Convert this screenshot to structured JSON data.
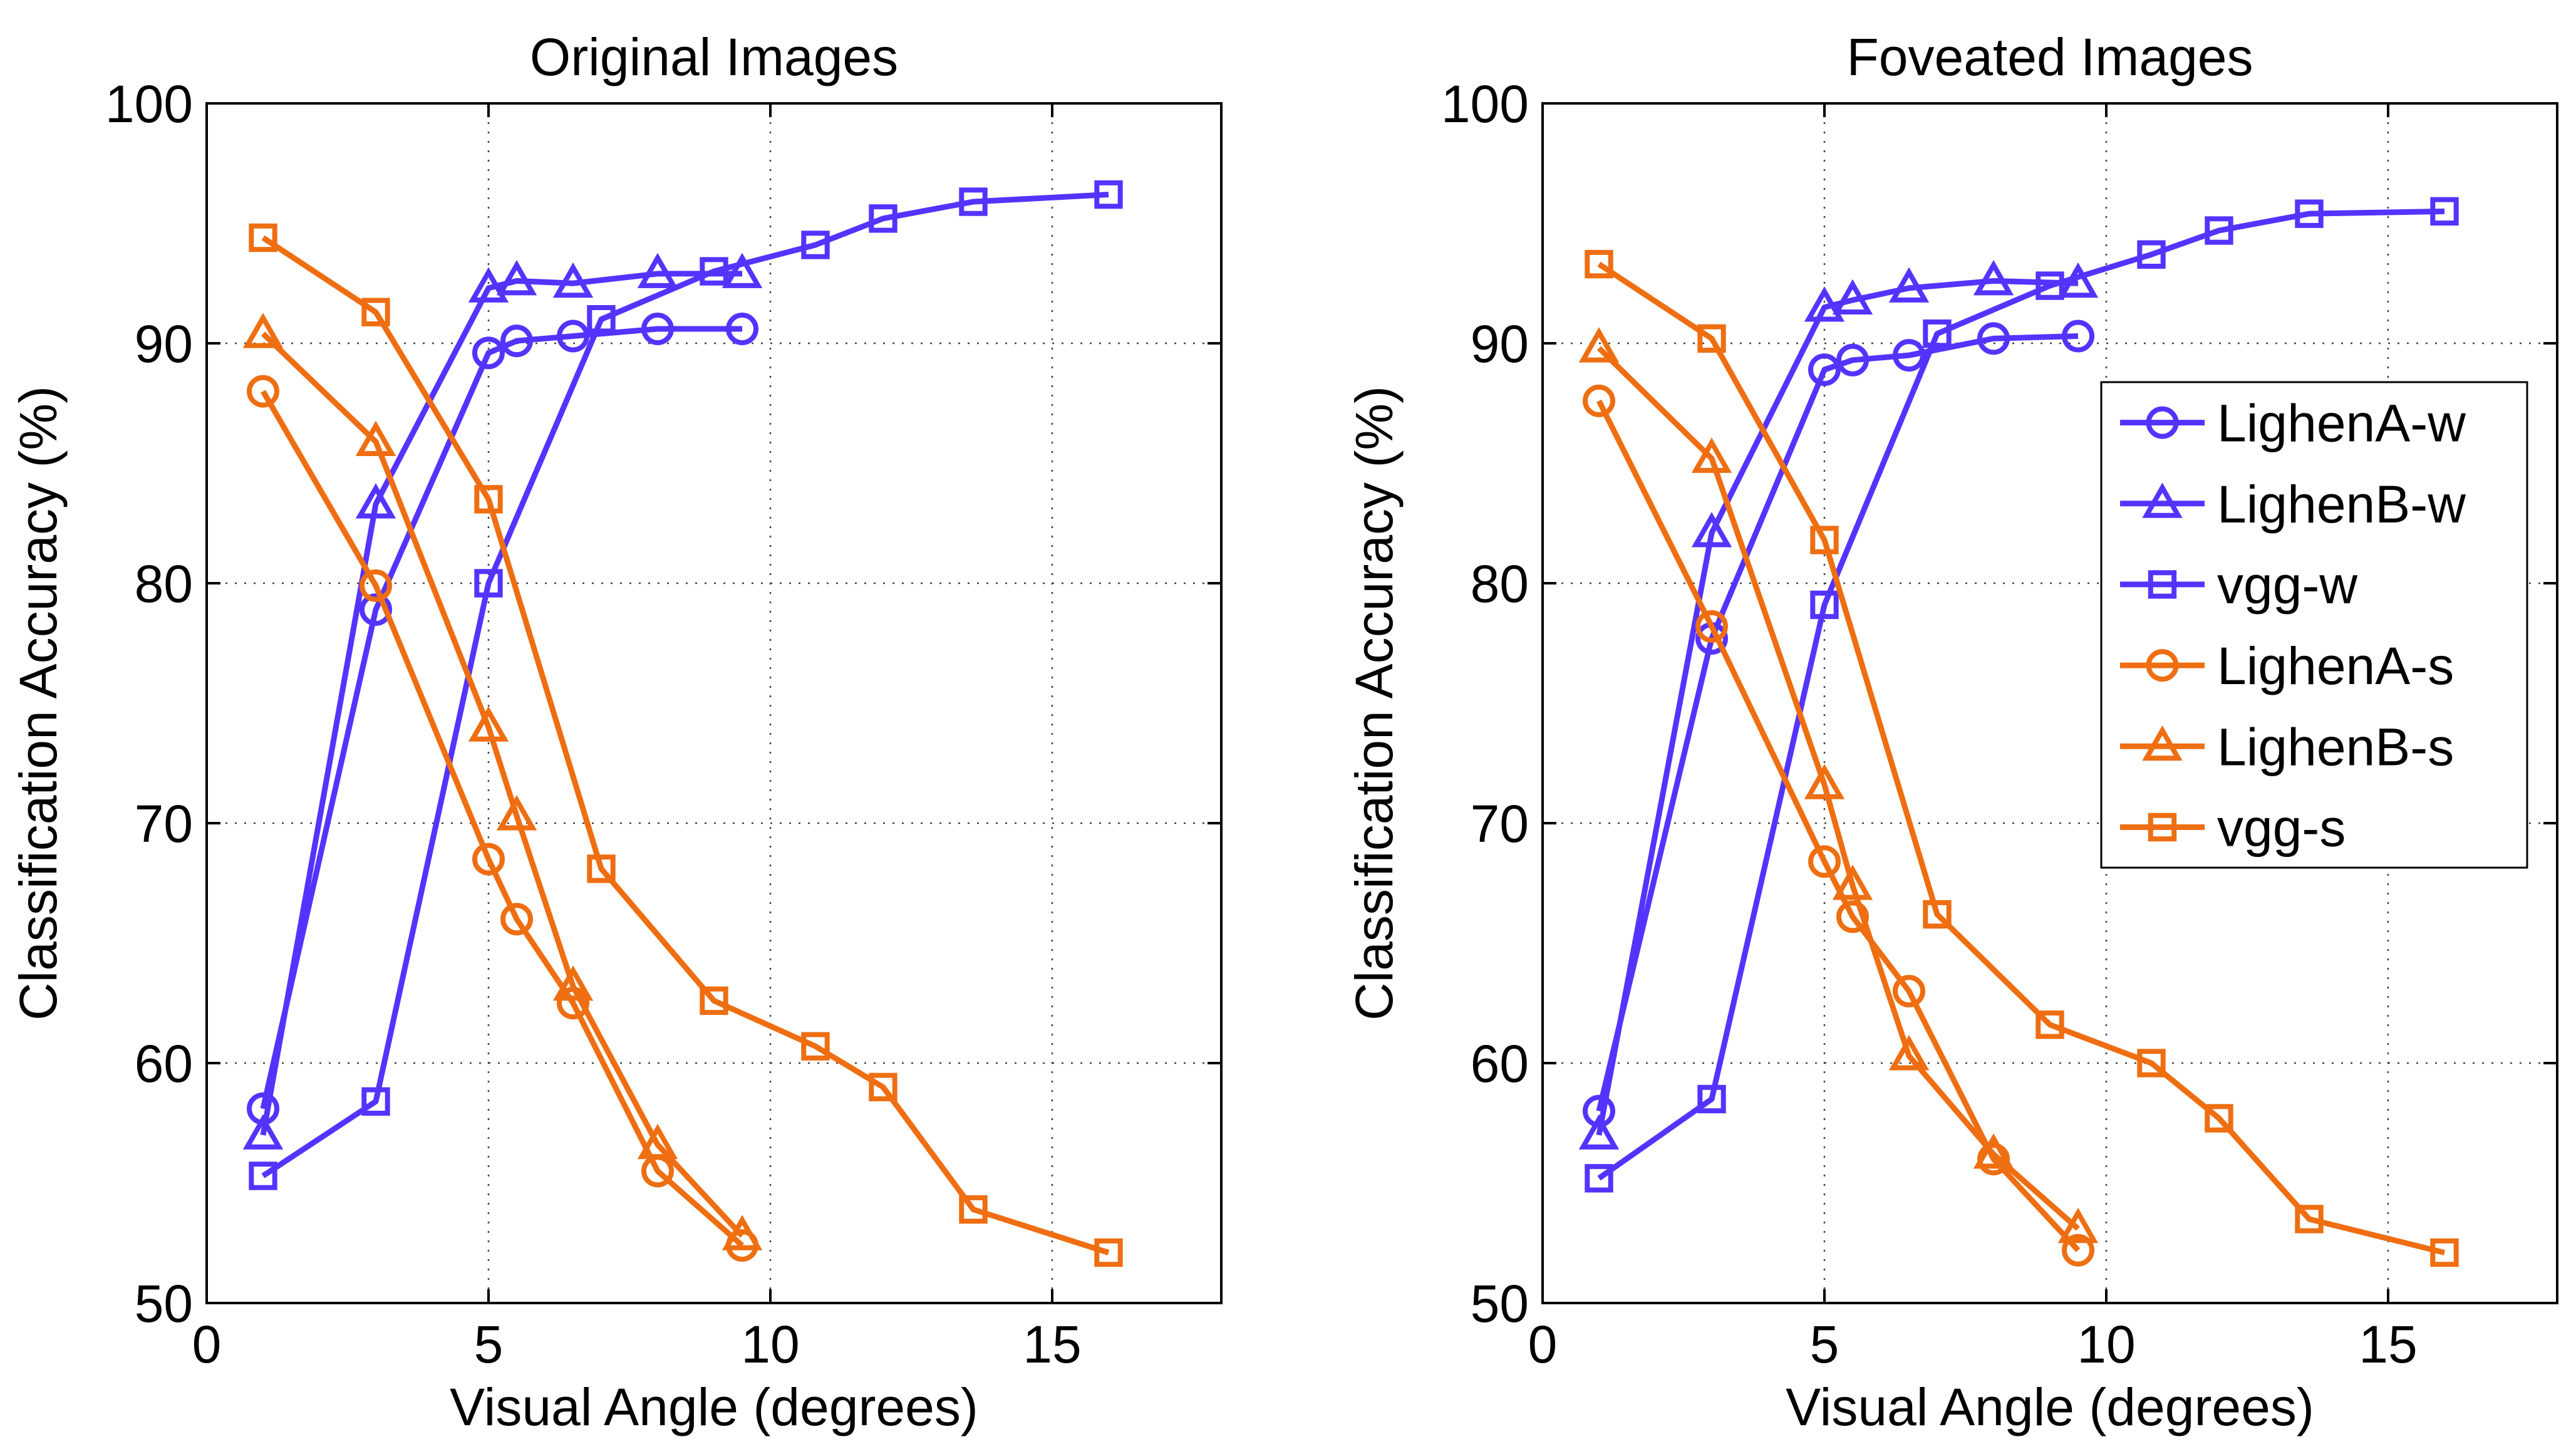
{
  "chart_data": [
    {
      "type": "line",
      "title": "Original Images",
      "xlabel": "Visual Angle (degrees)",
      "ylabel": "Classification Accuracy (%)",
      "xlim": [
        0,
        18
      ],
      "ylim": [
        50,
        100
      ],
      "xticks": [
        0,
        5,
        10,
        15
      ],
      "yticks": [
        50,
        60,
        70,
        80,
        90,
        100
      ],
      "grid": true,
      "legend": false,
      "series": [
        {
          "name": "LighenA-w",
          "color": "#5533ff",
          "marker": "circle",
          "x": [
            1,
            3,
            5,
            5.5,
            6.5,
            8,
            9.5
          ],
          "y": [
            58.1,
            78.9,
            89.6,
            90.1,
            90.3,
            90.6,
            90.6
          ]
        },
        {
          "name": "LighenB-w",
          "color": "#5533ff",
          "marker": "triangle",
          "x": [
            1,
            3,
            5,
            5.5,
            6.5,
            8,
            9.5
          ],
          "y": [
            57.0,
            83.3,
            92.3,
            92.6,
            92.5,
            92.9,
            92.9
          ]
        },
        {
          "name": "vgg-w",
          "color": "#5533ff",
          "marker": "square",
          "x": [
            1,
            3,
            5,
            7,
            9,
            10.8,
            12,
            13.6,
            16
          ],
          "y": [
            55.3,
            58.4,
            80.0,
            91.0,
            93.0,
            94.1,
            95.2,
            95.9,
            96.2
          ]
        },
        {
          "name": "LighenA-s",
          "color": "#ee6e11",
          "marker": "circle",
          "x": [
            1,
            3,
            5,
            5.5,
            6.5,
            8,
            9.5
          ],
          "y": [
            88.0,
            79.9,
            68.5,
            66.0,
            62.5,
            55.5,
            52.4
          ]
        },
        {
          "name": "LighenB-s",
          "color": "#ee6e11",
          "marker": "triangle",
          "x": [
            1,
            3,
            5,
            5.5,
            6.5,
            8,
            9.5
          ],
          "y": [
            90.4,
            85.9,
            74.0,
            70.3,
            63.2,
            56.6,
            52.8
          ]
        },
        {
          "name": "vgg-s",
          "color": "#ee6e11",
          "marker": "square",
          "x": [
            1,
            3,
            5,
            7,
            9,
            10.8,
            12,
            13.6,
            16
          ],
          "y": [
            94.4,
            91.3,
            83.5,
            68.1,
            62.6,
            60.7,
            59.0,
            53.9,
            52.1
          ]
        }
      ]
    },
    {
      "type": "line",
      "title": "Foveated Images",
      "xlabel": "Visual Angle (degrees)",
      "ylabel": "Classification Accuracy (%)",
      "xlim": [
        0,
        18
      ],
      "ylim": [
        50,
        100
      ],
      "xticks": [
        0,
        5,
        10,
        15
      ],
      "yticks": [
        50,
        60,
        70,
        80,
        90,
        100
      ],
      "grid": true,
      "legend": "right",
      "series": [
        {
          "name": "LighenA-w",
          "color": "#5533ff",
          "marker": "circle",
          "x": [
            1,
            3,
            5,
            5.5,
            6.5,
            8,
            9.5
          ],
          "y": [
            58.0,
            77.7,
            88.9,
            89.3,
            89.5,
            90.2,
            90.3
          ]
        },
        {
          "name": "LighenB-w",
          "color": "#5533ff",
          "marker": "triangle",
          "x": [
            1,
            3,
            5,
            5.5,
            6.5,
            8,
            9.5
          ],
          "y": [
            57.0,
            82.1,
            91.5,
            91.8,
            92.3,
            92.6,
            92.5
          ]
        },
        {
          "name": "vgg-w",
          "color": "#5533ff",
          "marker": "square",
          "x": [
            1,
            3,
            5,
            7,
            9,
            10.8,
            12,
            13.6,
            16
          ],
          "y": [
            55.2,
            58.5,
            79.1,
            90.4,
            92.4,
            93.7,
            94.7,
            95.4,
            95.5
          ]
        },
        {
          "name": "LighenA-s",
          "color": "#ee6e11",
          "marker": "circle",
          "x": [
            1,
            3,
            5,
            5.5,
            6.5,
            8,
            9.5
          ],
          "y": [
            87.6,
            78.2,
            68.4,
            66.1,
            63.0,
            56.0,
            52.2
          ]
        },
        {
          "name": "LighenB-s",
          "color": "#ee6e11",
          "marker": "triangle",
          "x": [
            1,
            3,
            5,
            5.5,
            6.5,
            8,
            9.5
          ],
          "y": [
            89.8,
            85.2,
            71.6,
            67.4,
            60.3,
            56.2,
            53.1
          ]
        },
        {
          "name": "vgg-s",
          "color": "#ee6e11",
          "marker": "square",
          "x": [
            1,
            3,
            5,
            7,
            9,
            10.8,
            12,
            13.6,
            16
          ],
          "y": [
            93.3,
            90.2,
            81.8,
            66.2,
            61.6,
            60.0,
            57.7,
            53.5,
            52.1
          ]
        }
      ]
    }
  ]
}
